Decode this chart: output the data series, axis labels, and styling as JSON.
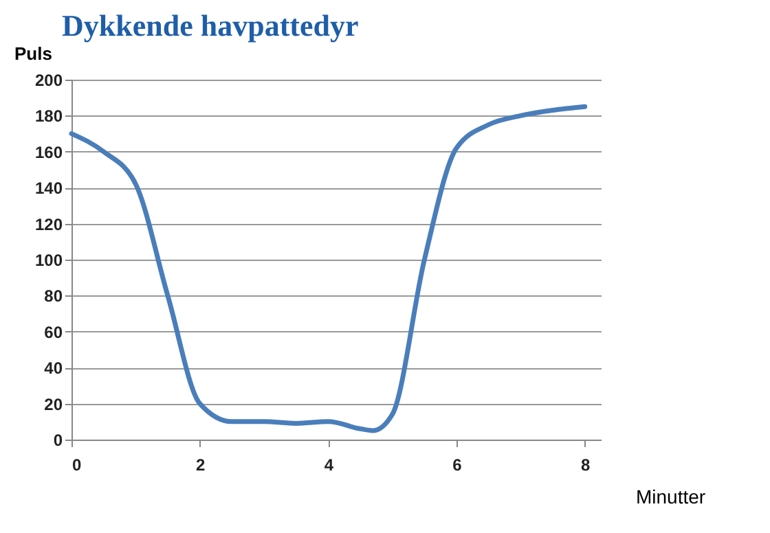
{
  "chart_data": {
    "type": "line",
    "title": "Dykkende havpattedyr",
    "xlabel": "Minutter",
    "ylabel": "Puls",
    "x": [
      0,
      0.5,
      1,
      1.5,
      2,
      2.5,
      3,
      3.5,
      4,
      4.5,
      4.7,
      5,
      5.5,
      6,
      6.5,
      7,
      7.5,
      8
    ],
    "series": [
      {
        "color": "#4a7ebb",
        "values": [
          170,
          160,
          142,
          80,
          20,
          10,
          10,
          9,
          10,
          6,
          5,
          14,
          100,
          162,
          175,
          180,
          183,
          185
        ]
      }
    ],
    "xlim": [
      0,
      8.25
    ],
    "xticks": [
      0,
      2,
      4,
      6,
      8
    ],
    "ylim": [
      0,
      200
    ],
    "yticks": [
      0,
      20,
      40,
      60,
      80,
      100,
      120,
      140,
      160,
      180,
      200
    ],
    "grid": "y",
    "marker": "none",
    "line_style": "solid"
  }
}
